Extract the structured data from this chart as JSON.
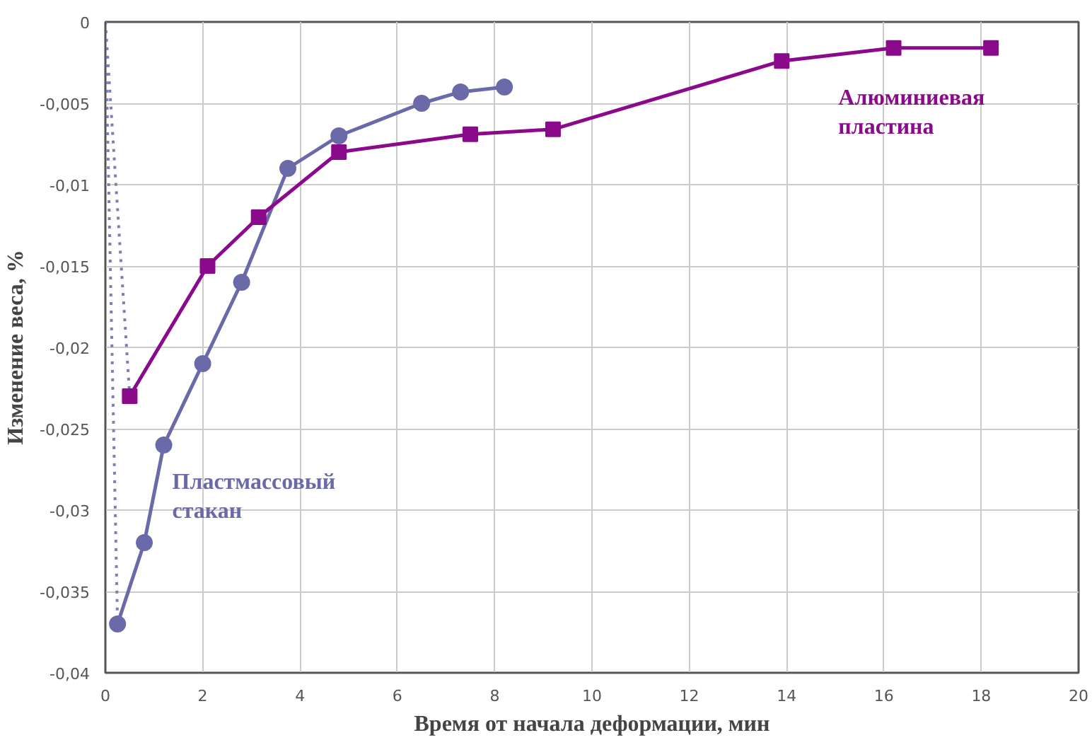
{
  "chart_data": {
    "type": "line",
    "xlabel": "Время от начала деформации, мин",
    "ylabel": "Изменение веса, %",
    "xlim": [
      0,
      20
    ],
    "xticks": [
      0,
      2,
      4,
      6,
      8,
      10,
      12,
      14,
      16,
      18,
      20
    ],
    "ylim": [
      -0.04,
      0
    ],
    "yticks": [
      {
        "value": -0.04,
        "label": "-0,04"
      },
      {
        "value": -0.035,
        "label": "-0,035"
      },
      {
        "value": -0.03,
        "label": "-0,03"
      },
      {
        "value": -0.025,
        "label": "-0,025"
      },
      {
        "value": -0.02,
        "label": "-0,02"
      },
      {
        "value": -0.015,
        "label": "-0,015"
      },
      {
        "value": -0.01,
        "label": "-0,01"
      },
      {
        "value": -0.005,
        "label": "-0,005"
      },
      {
        "value": 0,
        "label": "0"
      }
    ],
    "grid": true,
    "series": [
      {
        "color": "#7b7fb5",
        "line_style": "dotted",
        "marker": "none",
        "x": [
          0,
          0.25
        ],
        "values": [
          0,
          -0.037
        ]
      },
      {
        "color": "#7b7fb5",
        "line_style": "dotted",
        "marker": "none",
        "x": [
          0,
          0.5
        ],
        "values": [
          0,
          -0.023
        ]
      },
      {
        "name": "Пластмассовый стакан",
        "color": "#6a6aa8",
        "marker": "circle",
        "line_style": "solid",
        "x": [
          0.25,
          0.8,
          1.2,
          2.0,
          2.8,
          3.75,
          4.8,
          6.5,
          7.3,
          8.2
        ],
        "values": [
          -0.037,
          -0.032,
          -0.026,
          -0.021,
          -0.016,
          -0.009,
          -0.007,
          -0.005,
          -0.0043,
          -0.004
        ]
      },
      {
        "name": "Алюминиевая пластина",
        "color": "#8b0a8b",
        "marker": "square",
        "line_style": "solid",
        "x": [
          0.5,
          2.1,
          3.15,
          4.8,
          7.5,
          9.2,
          13.9,
          16.2,
          18.2
        ],
        "values": [
          -0.023,
          -0.015,
          -0.012,
          -0.008,
          -0.0069,
          -0.0066,
          -0.0024,
          -0.0016,
          -0.0016
        ]
      }
    ]
  }
}
